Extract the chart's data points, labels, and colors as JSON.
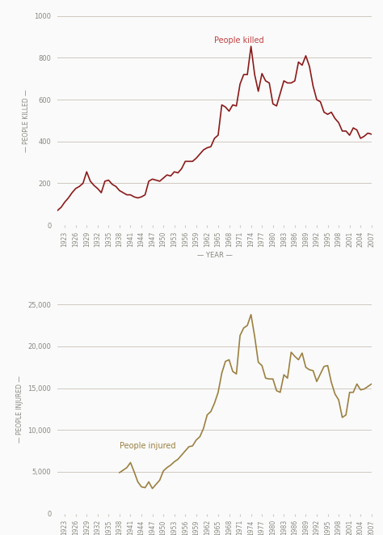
{
  "years": [
    1921,
    1922,
    1923,
    1924,
    1925,
    1926,
    1927,
    1928,
    1929,
    1930,
    1931,
    1932,
    1933,
    1934,
    1935,
    1936,
    1937,
    1938,
    1939,
    1940,
    1941,
    1942,
    1943,
    1944,
    1945,
    1946,
    1947,
    1948,
    1949,
    1950,
    1951,
    1952,
    1953,
    1954,
    1955,
    1956,
    1957,
    1958,
    1959,
    1960,
    1961,
    1962,
    1963,
    1964,
    1965,
    1966,
    1967,
    1968,
    1969,
    1970,
    1971,
    1972,
    1973,
    1974,
    1975,
    1976,
    1977,
    1978,
    1979,
    1980,
    1981,
    1982,
    1983,
    1984,
    1985,
    1986,
    1987,
    1988,
    1989,
    1990,
    1991,
    1992,
    1993,
    1994,
    1995,
    1996,
    1997,
    1998,
    1999,
    2000,
    2001,
    2002,
    2003,
    2004,
    2005,
    2006,
    2007
  ],
  "killed": [
    70,
    85,
    110,
    130,
    155,
    175,
    185,
    200,
    255,
    210,
    190,
    175,
    155,
    210,
    215,
    195,
    185,
    165,
    155,
    145,
    145,
    135,
    130,
    135,
    145,
    210,
    220,
    215,
    210,
    225,
    240,
    235,
    255,
    250,
    270,
    305,
    305,
    305,
    320,
    340,
    360,
    370,
    375,
    415,
    430,
    575,
    565,
    545,
    575,
    570,
    675,
    720,
    720,
    855,
    720,
    640,
    725,
    690,
    680,
    580,
    570,
    630,
    690,
    680,
    680,
    690,
    780,
    765,
    810,
    760,
    665,
    600,
    590,
    540,
    530,
    540,
    510,
    490,
    450,
    450,
    430,
    465,
    455,
    415,
    425,
    440,
    435
  ],
  "inj_years": [
    1938,
    1939,
    1940,
    1941,
    1942,
    1943,
    1944,
    1945,
    1946,
    1947,
    1948,
    1949,
    1950,
    1951,
    1952,
    1953,
    1954,
    1955,
    1956,
    1957,
    1958,
    1959,
    1960,
    1961,
    1962,
    1963,
    1964,
    1965,
    1966,
    1967,
    1968,
    1969,
    1970,
    1971,
    1972,
    1973,
    1974,
    1975,
    1976,
    1977,
    1978,
    1979,
    1980,
    1981,
    1982,
    1983,
    1984,
    1985,
    1986,
    1987,
    1988,
    1989,
    1990,
    1991,
    1992,
    1993,
    1994,
    1995,
    1996,
    1997,
    1998,
    1999,
    2000,
    2001,
    2002,
    2003,
    2004,
    2005,
    2006,
    2007
  ],
  "inj_vals": [
    4900,
    5200,
    5500,
    6100,
    5000,
    3800,
    3200,
    3100,
    3800,
    3000,
    3500,
    4000,
    5100,
    5500,
    5800,
    6200,
    6500,
    7000,
    7500,
    8000,
    8100,
    8800,
    9200,
    10200,
    11800,
    12200,
    13200,
    14500,
    16800,
    18200,
    18400,
    17000,
    16700,
    21300,
    22200,
    22500,
    23800,
    21200,
    18100,
    17700,
    16200,
    16100,
    16100,
    14700,
    14500,
    16600,
    16200,
    19300,
    18800,
    18400,
    19200,
    17500,
    17200,
    17100,
    15800,
    16700,
    17600,
    17700,
    15700,
    14300,
    13600,
    11500,
    11800,
    14500,
    14500,
    15500,
    14800,
    14900,
    15200,
    15500
  ],
  "killed_color": "#8B1A1A",
  "injured_color": "#9B8040",
  "bg_color": "#FAFAFA",
  "grid_color": "#D0C8C0",
  "label_color": "#888880",
  "annotation_color_killed": "#C04040",
  "annotation_color_injured": "#9B8040",
  "ylabel1": "— PEOPLE KILLED —",
  "ylabel2": "— PEOPLE INJURED —",
  "xlabel": "— YEAR —",
  "label1": "People killed",
  "label2": "People injured",
  "yticks1": [
    0,
    200,
    400,
    600,
    800,
    1000
  ],
  "yticks2": [
    0,
    5000,
    10000,
    15000,
    20000,
    25000
  ],
  "ylim1": [
    0,
    1000
  ],
  "ylim2": [
    0,
    25000
  ]
}
